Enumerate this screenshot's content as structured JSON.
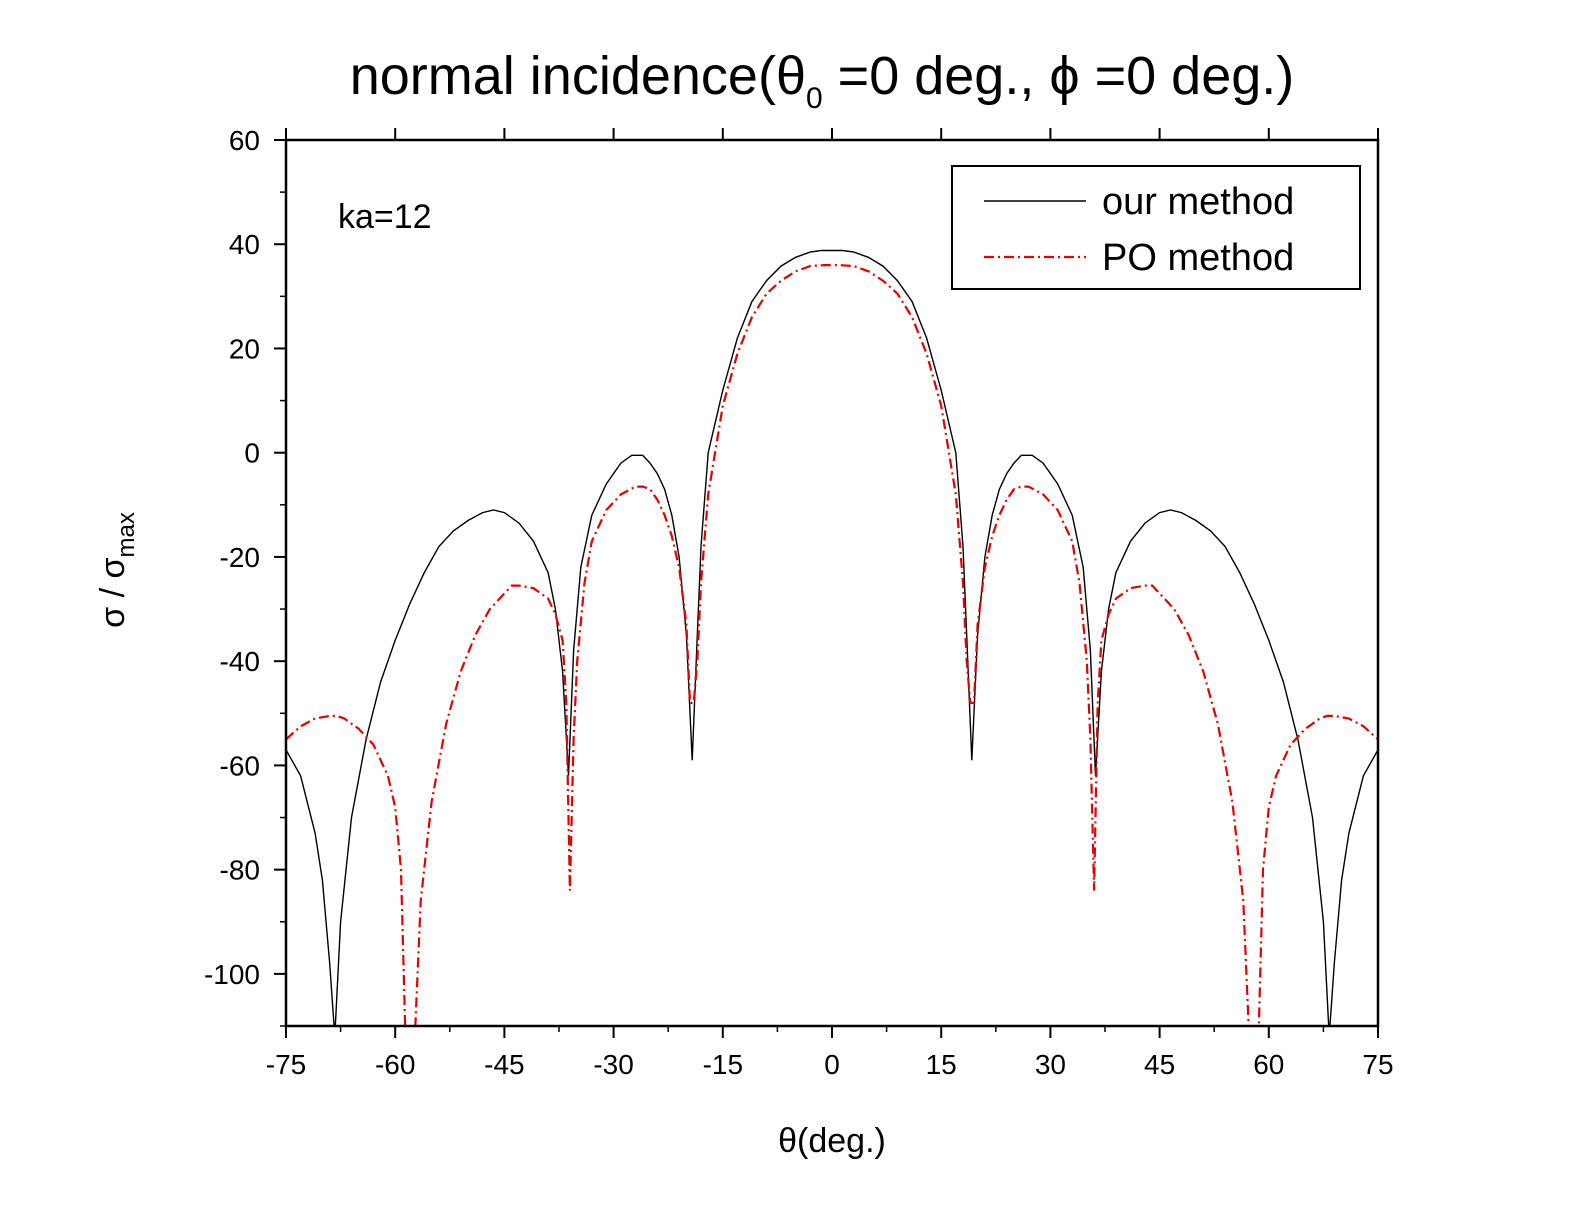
{
  "chart_data": {
    "type": "line",
    "title": {
      "prefix": "normal incidence(",
      "theta_symbol": "θ",
      "theta_sub": "0",
      "middle": " =0 deg., ",
      "phi_symbol": "ϕ",
      "suffix": " =0 deg.)"
    },
    "xlabel": "θ(deg.)",
    "ylabel": {
      "main": "σ / σ",
      "sub": "max"
    },
    "xlim": [
      -75,
      75
    ],
    "ylim": [
      -110,
      60
    ],
    "xticks": [
      -75,
      -60,
      -45,
      -30,
      -15,
      0,
      15,
      30,
      45,
      60,
      75
    ],
    "yticks": [
      -100,
      -80,
      -60,
      -40,
      -20,
      0,
      20,
      40,
      60
    ],
    "annotation": "ka=12",
    "legend": {
      "position": "top-right"
    },
    "series": [
      {
        "name": "our method",
        "color": "#000000",
        "style": "solid",
        "x": [
          -75,
          -73,
          -71,
          -70,
          -69,
          -68.3,
          -67.5,
          -66,
          -64,
          -62,
          -60,
          -58,
          -56,
          -54,
          -52,
          -50,
          -48,
          -46.5,
          -45,
          -43,
          -41,
          -39,
          -38,
          -37,
          -36.2,
          -35.5,
          -34.5,
          -33,
          -31,
          -29,
          -27.5,
          -26,
          -25,
          -24,
          -23,
          -22,
          -21,
          -20,
          -19.2,
          -18.5,
          -18,
          -17,
          -15,
          -13,
          -11,
          -9,
          -7,
          -5,
          -3,
          -1.5,
          0,
          1.5,
          3,
          5,
          7,
          9,
          11,
          13,
          15,
          17,
          18,
          18.5,
          19.2,
          20,
          21,
          22,
          23,
          24,
          25,
          26,
          27.5,
          29,
          31,
          33,
          34.5,
          35.5,
          36.2,
          37,
          38,
          39,
          41,
          43,
          45,
          46.5,
          48,
          50,
          52,
          54,
          56,
          58,
          60,
          62,
          64,
          66,
          67.5,
          68.3,
          69,
          70,
          71,
          73,
          75
        ],
        "y": [
          -57,
          -62,
          -73,
          -82,
          -98,
          -112,
          -90,
          -70,
          -55,
          -44,
          -36,
          -29,
          -23,
          -18,
          -15,
          -13,
          -11.5,
          -11,
          -11.5,
          -13.5,
          -17,
          -23,
          -30,
          -42,
          -62,
          -38,
          -22,
          -12,
          -6,
          -2,
          -0.5,
          -0.5,
          -2,
          -4,
          -7,
          -12,
          -20,
          -35,
          -59,
          -35,
          -18,
          0,
          12,
          22,
          29,
          33,
          35.8,
          37.5,
          38.5,
          38.8,
          38.8,
          38.8,
          38.5,
          37.5,
          35.8,
          33,
          29,
          22,
          12,
          0,
          -18,
          -35,
          -59,
          -35,
          -20,
          -12,
          -7,
          -4,
          -2,
          -0.5,
          -0.5,
          -2,
          -6,
          -12,
          -22,
          -38,
          -62,
          -42,
          -30,
          -23,
          -17,
          -13.5,
          -11.5,
          -11,
          -11.5,
          -13,
          -15,
          -18,
          -23,
          -29,
          -36,
          -44,
          -55,
          -70,
          -90,
          -112,
          -98,
          -82,
          -73,
          -62,
          -57
        ]
      },
      {
        "name": "PO method",
        "color": "#e00000",
        "style": "dashdot",
        "x": [
          -75,
          -73,
          -71,
          -69,
          -68,
          -67,
          -65,
          -63,
          -61,
          -60,
          -59.2,
          -58.6,
          -58,
          -57.3,
          -56.5,
          -55,
          -53,
          -51,
          -49,
          -47,
          -45,
          -44,
          -43,
          -41,
          -39,
          -38,
          -37,
          -36.5,
          -36,
          -35.5,
          -35,
          -34,
          -33,
          -31,
          -29,
          -27,
          -26,
          -25,
          -24,
          -23,
          -22,
          -21,
          -20,
          -19.5,
          -19,
          -18.5,
          -18,
          -17,
          -15,
          -13,
          -11,
          -9,
          -7,
          -5,
          -3,
          -1,
          0,
          1,
          3,
          5,
          7,
          9,
          11,
          13,
          15,
          17,
          18,
          18.5,
          19,
          19.5,
          20,
          21,
          22,
          23,
          24,
          25,
          26,
          27,
          29,
          31,
          33,
          34,
          35,
          35.5,
          36,
          36.5,
          37,
          38,
          39,
          41,
          43,
          44,
          45,
          47,
          49,
          51,
          53,
          55,
          56.5,
          57.3,
          58,
          58.6,
          59.2,
          60,
          61,
          63,
          65,
          67,
          68,
          69,
          71,
          73,
          75
        ],
        "y": [
          -55,
          -52.5,
          -51,
          -50.5,
          -50.5,
          -51,
          -53,
          -56,
          -62,
          -68,
          -80,
          -112,
          -112,
          -112,
          -86,
          -67,
          -52,
          -42,
          -35,
          -30,
          -27,
          -25.5,
          -25.5,
          -26,
          -28,
          -31,
          -36,
          -48,
          -84,
          -55,
          -40,
          -25,
          -17,
          -11,
          -8,
          -6.5,
          -6.5,
          -7,
          -9,
          -12,
          -16,
          -22,
          -33,
          -48,
          -48,
          -40,
          -25,
          -8,
          9,
          19,
          26,
          30.5,
          33,
          34.8,
          35.8,
          36,
          36,
          36,
          35.8,
          34.8,
          33,
          30.5,
          26,
          19,
          9,
          -8,
          -25,
          -40,
          -48,
          -48,
          -33,
          -22,
          -16,
          -12,
          -9,
          -7,
          -6.5,
          -6.5,
          -8,
          -11,
          -17,
          -25,
          -40,
          -55,
          -84,
          -48,
          -36,
          -31,
          -28,
          -26,
          -25.5,
          -25.5,
          -27,
          -30,
          -35,
          -42,
          -52,
          -67,
          -86,
          -112,
          -112,
          -112,
          -80,
          -68,
          -62,
          -56,
          -53,
          -51,
          -50.5,
          -50.5,
          -51,
          -52.5,
          -55
        ]
      }
    ]
  }
}
